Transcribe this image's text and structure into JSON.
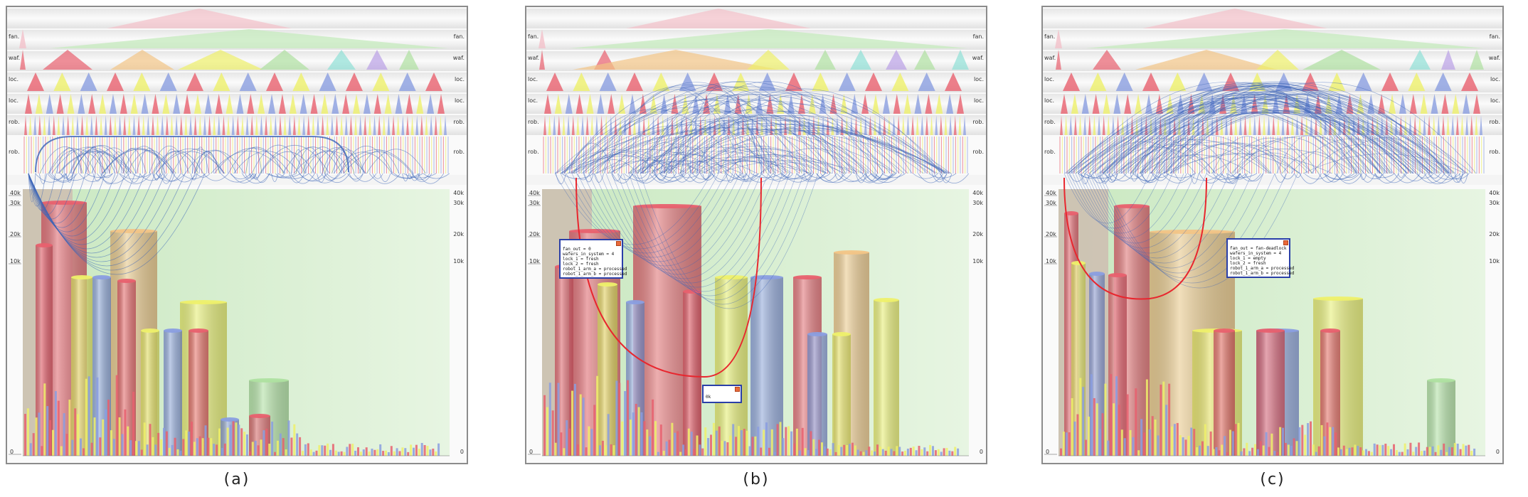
{
  "captions": [
    "(a)",
    "(b)",
    "(c)"
  ],
  "level_labels": [
    "fan.",
    "waf.",
    "loc.",
    "loc.",
    "rob.",
    "rob."
  ],
  "axis_ticks": [
    "40k",
    "30k",
    "20k",
    "10k",
    "0"
  ],
  "colors": {
    "red": "#e8606e",
    "yellow": "#eef06a",
    "blue": "#8a9ee0",
    "orange": "#f2c486",
    "green": "#aee0a0",
    "teal": "#8fe0d6",
    "purple": "#b9a0e6",
    "arc": "#3b64b8",
    "highlight": "#e8262e",
    "popup_border": "#2a3fa8"
  },
  "popups": {
    "b_main": [
      "fan_out = 0",
      "wafers_in_system = 4",
      "lock_1 = fresh",
      "lock_2 = fresh",
      "robot_1_arm_a = processed",
      "robot_1_arm_b = processed"
    ],
    "b_small": [
      "0k"
    ],
    "c_main": [
      "fan_out = fan-deadlock",
      "wafers_in_system = 4",
      "lock_1 = empty",
      "lock_2 = fresh",
      "robot_1_arm_a = processed",
      "robot_1_arm_b = processed"
    ]
  }
}
